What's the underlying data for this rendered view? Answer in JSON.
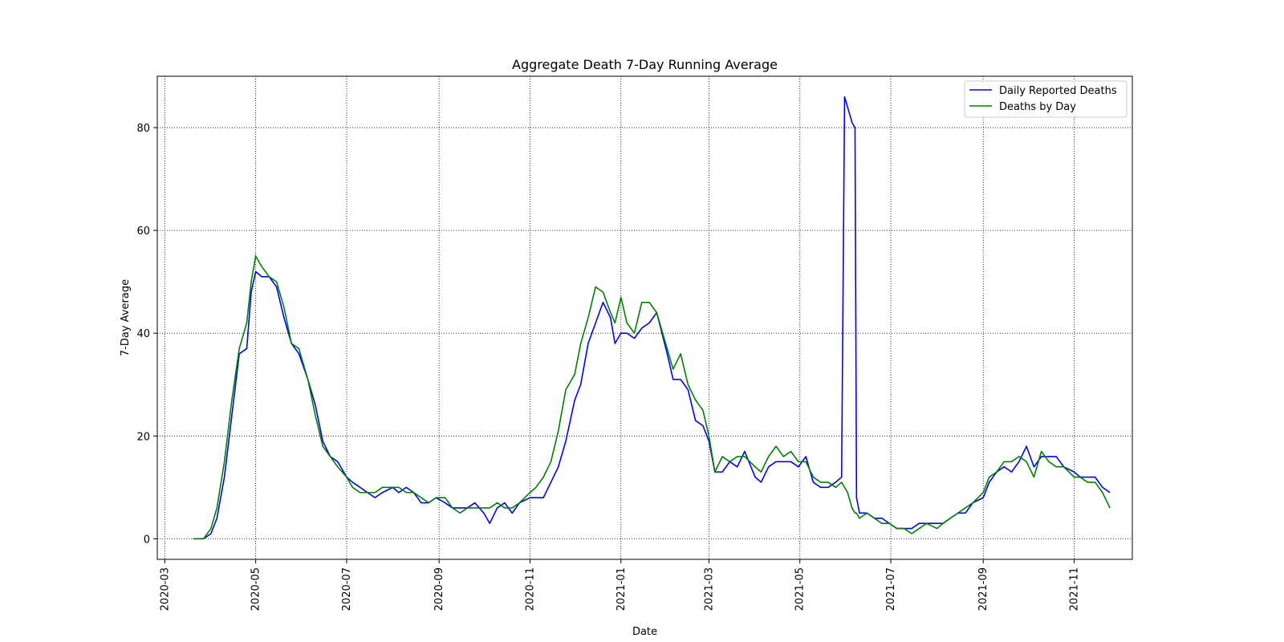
{
  "chart_data": {
    "type": "line",
    "title": "Aggregate Death 7-Day Running Average",
    "xlabel": "Date",
    "ylabel": "7-Day Average",
    "x_axis_kind": "date",
    "xlim": [
      "2020-02-25",
      "2021-12-10"
    ],
    "ylim": [
      -4,
      90
    ],
    "grid": true,
    "grid_style": "dotted",
    "legend_position": "top-right",
    "x_ticks": [
      "2020-03",
      "2020-05",
      "2020-07",
      "2020-09",
      "2020-11",
      "2021-01",
      "2021-03",
      "2021-05",
      "2021-07",
      "2021-09",
      "2021-11"
    ],
    "y_ticks": [
      0,
      20,
      40,
      60,
      80
    ],
    "series": [
      {
        "name": "Daily Reported Deaths",
        "color": "#0000ff",
        "points": [
          [
            "2020-03-20",
            0
          ],
          [
            "2020-03-27",
            0
          ],
          [
            "2020-04-01",
            1
          ],
          [
            "2020-04-05",
            4
          ],
          [
            "2020-04-10",
            12
          ],
          [
            "2020-04-15",
            24
          ],
          [
            "2020-04-20",
            36
          ],
          [
            "2020-04-25",
            37
          ],
          [
            "2020-04-28",
            48
          ],
          [
            "2020-05-01",
            52
          ],
          [
            "2020-05-05",
            51
          ],
          [
            "2020-05-10",
            51
          ],
          [
            "2020-05-15",
            49
          ],
          [
            "2020-05-20",
            43
          ],
          [
            "2020-05-25",
            38
          ],
          [
            "2020-05-30",
            36
          ],
          [
            "2020-06-05",
            31
          ],
          [
            "2020-06-10",
            26
          ],
          [
            "2020-06-15",
            19
          ],
          [
            "2020-06-20",
            16
          ],
          [
            "2020-06-25",
            15
          ],
          [
            "2020-07-01",
            12
          ],
          [
            "2020-07-05",
            11
          ],
          [
            "2020-07-10",
            10
          ],
          [
            "2020-07-15",
            9
          ],
          [
            "2020-07-20",
            8
          ],
          [
            "2020-07-25",
            9
          ],
          [
            "2020-08-01",
            10
          ],
          [
            "2020-08-05",
            9
          ],
          [
            "2020-08-10",
            10
          ],
          [
            "2020-08-15",
            9
          ],
          [
            "2020-08-20",
            7
          ],
          [
            "2020-08-25",
            7
          ],
          [
            "2020-08-30",
            8
          ],
          [
            "2020-09-05",
            7
          ],
          [
            "2020-09-10",
            6
          ],
          [
            "2020-09-15",
            6
          ],
          [
            "2020-09-20",
            6
          ],
          [
            "2020-09-25",
            7
          ],
          [
            "2020-10-01",
            5
          ],
          [
            "2020-10-05",
            3
          ],
          [
            "2020-10-10",
            6
          ],
          [
            "2020-10-15",
            7
          ],
          [
            "2020-10-20",
            5
          ],
          [
            "2020-10-25",
            7
          ],
          [
            "2020-11-01",
            8
          ],
          [
            "2020-11-05",
            8
          ],
          [
            "2020-11-10",
            8
          ],
          [
            "2020-11-15",
            11
          ],
          [
            "2020-11-20",
            14
          ],
          [
            "2020-11-25",
            19
          ],
          [
            "2020-12-01",
            27
          ],
          [
            "2020-12-05",
            30
          ],
          [
            "2020-12-10",
            38
          ],
          [
            "2020-12-15",
            42
          ],
          [
            "2020-12-20",
            46
          ],
          [
            "2020-12-25",
            43
          ],
          [
            "2020-12-28",
            38
          ],
          [
            "2021-01-01",
            40
          ],
          [
            "2021-01-05",
            40
          ],
          [
            "2021-01-10",
            39
          ],
          [
            "2021-01-15",
            41
          ],
          [
            "2021-01-20",
            42
          ],
          [
            "2021-01-25",
            44
          ],
          [
            "2021-02-01",
            36
          ],
          [
            "2021-02-05",
            31
          ],
          [
            "2021-02-10",
            31
          ],
          [
            "2021-02-15",
            29
          ],
          [
            "2021-02-20",
            23
          ],
          [
            "2021-02-25",
            22
          ],
          [
            "2021-03-01",
            19
          ],
          [
            "2021-03-05",
            13
          ],
          [
            "2021-03-10",
            13
          ],
          [
            "2021-03-15",
            15
          ],
          [
            "2021-03-20",
            14
          ],
          [
            "2021-03-25",
            17
          ],
          [
            "2021-04-01",
            12
          ],
          [
            "2021-04-05",
            11
          ],
          [
            "2021-04-10",
            14
          ],
          [
            "2021-04-15",
            15
          ],
          [
            "2021-04-20",
            15
          ],
          [
            "2021-04-25",
            15
          ],
          [
            "2021-04-30",
            14
          ],
          [
            "2021-05-05",
            16
          ],
          [
            "2021-05-10",
            11
          ],
          [
            "2021-05-15",
            10
          ],
          [
            "2021-05-20",
            10
          ],
          [
            "2021-05-25",
            11
          ],
          [
            "2021-05-29",
            12
          ],
          [
            "2021-05-31",
            86
          ],
          [
            "2021-06-02",
            84
          ],
          [
            "2021-06-05",
            81
          ],
          [
            "2021-06-07",
            80
          ],
          [
            "2021-06-08",
            8
          ],
          [
            "2021-06-10",
            5
          ],
          [
            "2021-06-15",
            5
          ],
          [
            "2021-06-20",
            4
          ],
          [
            "2021-06-25",
            4
          ],
          [
            "2021-06-30",
            3
          ],
          [
            "2021-07-05",
            2
          ],
          [
            "2021-07-10",
            2
          ],
          [
            "2021-07-15",
            2
          ],
          [
            "2021-07-20",
            3
          ],
          [
            "2021-07-25",
            3
          ],
          [
            "2021-08-01",
            3
          ],
          [
            "2021-08-05",
            3
          ],
          [
            "2021-08-10",
            4
          ],
          [
            "2021-08-15",
            5
          ],
          [
            "2021-08-20",
            5
          ],
          [
            "2021-08-25",
            7
          ],
          [
            "2021-09-01",
            8
          ],
          [
            "2021-09-05",
            11
          ],
          [
            "2021-09-10",
            13
          ],
          [
            "2021-09-15",
            14
          ],
          [
            "2021-09-20",
            13
          ],
          [
            "2021-09-25",
            15
          ],
          [
            "2021-09-30",
            18
          ],
          [
            "2021-10-05",
            14
          ],
          [
            "2021-10-10",
            16
          ],
          [
            "2021-10-15",
            16
          ],
          [
            "2021-10-20",
            16
          ],
          [
            "2021-10-25",
            14
          ],
          [
            "2021-11-01",
            13
          ],
          [
            "2021-11-05",
            12
          ],
          [
            "2021-11-10",
            12
          ],
          [
            "2021-11-15",
            12
          ],
          [
            "2021-11-20",
            10
          ],
          [
            "2021-11-25",
            9
          ]
        ]
      },
      {
        "name": "Deaths by Day",
        "color": "#008000",
        "points": [
          [
            "2020-03-20",
            0
          ],
          [
            "2020-03-27",
            0
          ],
          [
            "2020-04-01",
            2
          ],
          [
            "2020-04-05",
            6
          ],
          [
            "2020-04-10",
            15
          ],
          [
            "2020-04-15",
            27
          ],
          [
            "2020-04-20",
            37
          ],
          [
            "2020-04-25",
            42
          ],
          [
            "2020-04-28",
            50
          ],
          [
            "2020-05-01",
            55
          ],
          [
            "2020-05-05",
            53
          ],
          [
            "2020-05-10",
            51
          ],
          [
            "2020-05-15",
            50
          ],
          [
            "2020-05-20",
            45
          ],
          [
            "2020-05-25",
            38
          ],
          [
            "2020-05-30",
            37
          ],
          [
            "2020-06-05",
            31
          ],
          [
            "2020-06-10",
            24
          ],
          [
            "2020-06-15",
            18
          ],
          [
            "2020-06-20",
            16
          ],
          [
            "2020-06-25",
            14
          ],
          [
            "2020-07-01",
            12
          ],
          [
            "2020-07-05",
            10
          ],
          [
            "2020-07-10",
            9
          ],
          [
            "2020-07-15",
            9
          ],
          [
            "2020-07-20",
            9
          ],
          [
            "2020-07-25",
            10
          ],
          [
            "2020-08-01",
            10
          ],
          [
            "2020-08-05",
            10
          ],
          [
            "2020-08-10",
            9
          ],
          [
            "2020-08-15",
            9
          ],
          [
            "2020-08-20",
            8
          ],
          [
            "2020-08-25",
            7
          ],
          [
            "2020-08-30",
            8
          ],
          [
            "2020-09-05",
            8
          ],
          [
            "2020-09-10",
            6
          ],
          [
            "2020-09-15",
            5
          ],
          [
            "2020-09-20",
            6
          ],
          [
            "2020-09-25",
            6
          ],
          [
            "2020-10-01",
            6
          ],
          [
            "2020-10-05",
            6
          ],
          [
            "2020-10-10",
            7
          ],
          [
            "2020-10-15",
            6
          ],
          [
            "2020-10-20",
            6
          ],
          [
            "2020-10-25",
            7
          ],
          [
            "2020-11-01",
            9
          ],
          [
            "2020-11-05",
            10
          ],
          [
            "2020-11-10",
            12
          ],
          [
            "2020-11-15",
            15
          ],
          [
            "2020-11-20",
            21
          ],
          [
            "2020-11-25",
            29
          ],
          [
            "2020-12-01",
            32
          ],
          [
            "2020-12-05",
            38
          ],
          [
            "2020-12-10",
            43
          ],
          [
            "2020-12-15",
            49
          ],
          [
            "2020-12-20",
            48
          ],
          [
            "2020-12-25",
            44
          ],
          [
            "2020-12-28",
            42
          ],
          [
            "2021-01-01",
            47
          ],
          [
            "2021-01-05",
            42
          ],
          [
            "2021-01-10",
            40
          ],
          [
            "2021-01-15",
            46
          ],
          [
            "2021-01-20",
            46
          ],
          [
            "2021-01-25",
            44
          ],
          [
            "2021-02-01",
            37
          ],
          [
            "2021-02-05",
            33
          ],
          [
            "2021-02-10",
            36
          ],
          [
            "2021-02-15",
            30
          ],
          [
            "2021-02-20",
            27
          ],
          [
            "2021-02-25",
            25
          ],
          [
            "2021-03-01",
            20
          ],
          [
            "2021-03-05",
            13
          ],
          [
            "2021-03-10",
            16
          ],
          [
            "2021-03-15",
            15
          ],
          [
            "2021-03-20",
            16
          ],
          [
            "2021-03-25",
            16
          ],
          [
            "2021-04-01",
            14
          ],
          [
            "2021-04-05",
            13
          ],
          [
            "2021-04-10",
            16
          ],
          [
            "2021-04-15",
            18
          ],
          [
            "2021-04-20",
            16
          ],
          [
            "2021-04-25",
            17
          ],
          [
            "2021-04-30",
            15
          ],
          [
            "2021-05-05",
            15
          ],
          [
            "2021-05-10",
            12
          ],
          [
            "2021-05-15",
            11
          ],
          [
            "2021-05-20",
            11
          ],
          [
            "2021-05-25",
            10
          ],
          [
            "2021-05-29",
            11
          ],
          [
            "2021-05-31",
            10
          ],
          [
            "2021-06-02",
            9
          ],
          [
            "2021-06-05",
            6
          ],
          [
            "2021-06-07",
            5
          ],
          [
            "2021-06-08",
            5
          ],
          [
            "2021-06-10",
            4
          ],
          [
            "2021-06-15",
            5
          ],
          [
            "2021-06-20",
            4
          ],
          [
            "2021-06-25",
            3
          ],
          [
            "2021-06-30",
            3
          ],
          [
            "2021-07-05",
            2
          ],
          [
            "2021-07-10",
            2
          ],
          [
            "2021-07-15",
            1
          ],
          [
            "2021-07-20",
            2
          ],
          [
            "2021-07-25",
            3
          ],
          [
            "2021-08-01",
            2
          ],
          [
            "2021-08-05",
            3
          ],
          [
            "2021-08-10",
            4
          ],
          [
            "2021-08-15",
            5
          ],
          [
            "2021-08-20",
            6
          ],
          [
            "2021-08-25",
            7
          ],
          [
            "2021-09-01",
            9
          ],
          [
            "2021-09-05",
            12
          ],
          [
            "2021-09-10",
            13
          ],
          [
            "2021-09-15",
            15
          ],
          [
            "2021-09-20",
            15
          ],
          [
            "2021-09-25",
            16
          ],
          [
            "2021-09-30",
            15
          ],
          [
            "2021-10-05",
            12
          ],
          [
            "2021-10-10",
            17
          ],
          [
            "2021-10-15",
            15
          ],
          [
            "2021-10-20",
            14
          ],
          [
            "2021-10-25",
            14
          ],
          [
            "2021-11-01",
            12
          ],
          [
            "2021-11-05",
            12
          ],
          [
            "2021-11-10",
            11
          ],
          [
            "2021-11-15",
            11
          ],
          [
            "2021-11-20",
            9
          ],
          [
            "2021-11-25",
            6
          ]
        ]
      }
    ]
  }
}
